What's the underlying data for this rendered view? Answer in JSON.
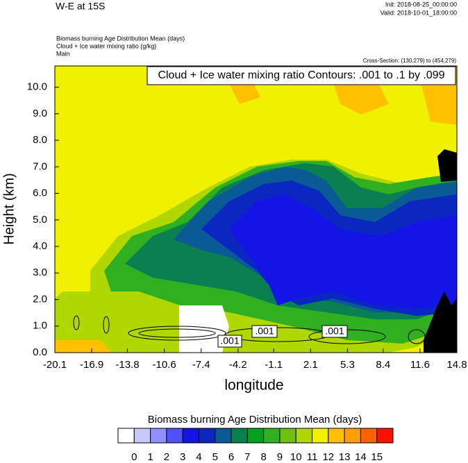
{
  "chart_data": {
    "type": "contour",
    "title": "W-E at 15S",
    "init": "Init: 2018-08-25_00:00:00",
    "valid": "Valid: 2018-10-01_18:00:00",
    "subtitles": [
      "Biomass burning Age Distribution Mean   (days)",
      "Cloud + Ice water mixing ratio   (g/kg)",
      "Main"
    ],
    "cross_section": "Cross-Section: (130,279) to (454,279)",
    "contour_info": "Cloud + Ice water mixing ratio Contours: .001 to .1 by .099",
    "contour_labels": [
      ".001",
      ".001",
      ".001"
    ],
    "x_label": "longitude",
    "y_label": "Height (km)",
    "xlim": [
      -20.1,
      14.8
    ],
    "xticks": [
      -20.1,
      -16.9,
      -13.8,
      -10.6,
      -7.4,
      -4.2,
      -1.1,
      2.1,
      5.3,
      8.4,
      11.6,
      14.8
    ],
    "ylim": [
      0,
      10.8
    ],
    "yticks": [
      {
        "value": 0,
        "label": "0.0"
      },
      {
        "value": 1,
        "label": "1.0"
      },
      {
        "value": 2,
        "label": "2.0"
      },
      {
        "value": 3,
        "label": "3.0"
      },
      {
        "value": 4,
        "label": "4.0"
      },
      {
        "value": 5,
        "label": "5.0"
      },
      {
        "value": 6,
        "label": "6.0"
      },
      {
        "value": 7,
        "label": "7.0"
      },
      {
        "value": 8,
        "label": "8.0"
      },
      {
        "value": 9,
        "label": "9.0"
      },
      {
        "value": 10,
        "label": "10.0"
      }
    ],
    "colorbar_title": "Biomass burning Age Distribution Mean  (days)",
    "levels": [
      0,
      1,
      2,
      3,
      4,
      5,
      6,
      7,
      8,
      9,
      10,
      11,
      12,
      13,
      14,
      15
    ],
    "colors": [
      "#ffffff",
      "#c8c8ff",
      "#9090ff",
      "#5050ff",
      "#1414e6",
      "#0a28c0",
      "#0a5a96",
      "#0a8050",
      "#00a020",
      "#30b020",
      "#70c010",
      "#b0d800",
      "#f0f000",
      "#ffc000",
      "#ffa000",
      "#ff6000",
      "#ff1000"
    ]
  }
}
